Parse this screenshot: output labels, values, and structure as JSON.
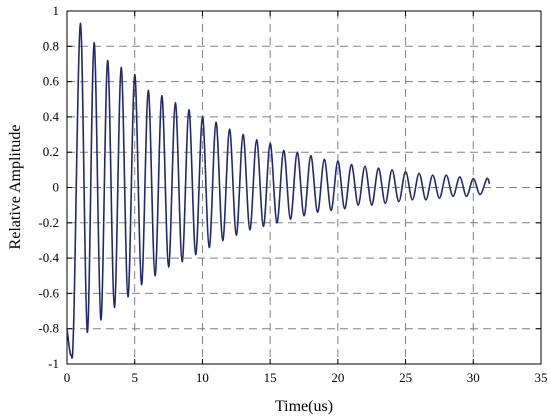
{
  "chart_data": {
    "type": "line",
    "title": "",
    "xlabel": "Time(us)",
    "ylabel": "Relative Amplitude",
    "xlim": [
      0,
      35
    ],
    "ylim": [
      -1,
      1
    ],
    "x_ticks": [
      0,
      5,
      10,
      15,
      20,
      25,
      30,
      35
    ],
    "y_ticks": [
      -1,
      -0.8,
      -0.6,
      -0.4,
      -0.2,
      0,
      0.2,
      0.4,
      0.6,
      0.8,
      1
    ],
    "x_tick_labels": [
      "0",
      "5",
      "10",
      "15",
      "20",
      "25",
      "30",
      "35"
    ],
    "y_tick_labels": [
      "-1",
      "-0.8",
      "-0.6",
      "-0.4",
      "-0.2",
      "0",
      "0.2",
      "0.4",
      "0.6",
      "0.8",
      "1"
    ],
    "grid": true,
    "series": [
      {
        "color": "#1f2a6e",
        "x": [
          0,
          0.3,
          0.5,
          1.0,
          1.5,
          2.0,
          2.5,
          3.0,
          3.5,
          4.0,
          4.5,
          5.0,
          5.5,
          6.0,
          6.5,
          7.0,
          7.5,
          8.0,
          8.5,
          9.0,
          9.5,
          10.0,
          10.5,
          11.0,
          11.5,
          12.0,
          12.5,
          13.0,
          13.5,
          14.0,
          14.5,
          15.0,
          15.5,
          16.0,
          16.5,
          17.0,
          17.5,
          18.0,
          18.5,
          19.0,
          19.5,
          20.0,
          20.5,
          21.0,
          21.5,
          22.0,
          22.5,
          23.0,
          23.5,
          24.0,
          24.5,
          25.0,
          25.5,
          26.0,
          26.5,
          27.0,
          27.5,
          28.0,
          28.5,
          29.0,
          29.5,
          30.0,
          30.5,
          31.0,
          31.2
        ],
        "y": [
          -0.8,
          -0.95,
          -0.75,
          0.93,
          -0.82,
          0.82,
          -0.75,
          0.72,
          -0.68,
          0.68,
          -0.62,
          0.64,
          -0.55,
          0.55,
          -0.5,
          0.52,
          -0.45,
          0.48,
          -0.42,
          0.44,
          -0.38,
          0.4,
          -0.34,
          0.37,
          -0.3,
          0.33,
          -0.27,
          0.3,
          -0.24,
          0.27,
          -0.22,
          0.25,
          -0.2,
          0.21,
          -0.18,
          0.2,
          -0.16,
          0.18,
          -0.14,
          0.16,
          -0.13,
          0.15,
          -0.12,
          0.13,
          -0.1,
          0.12,
          -0.1,
          0.11,
          -0.09,
          0.1,
          -0.08,
          0.09,
          -0.07,
          0.08,
          -0.07,
          0.07,
          -0.06,
          0.07,
          -0.05,
          0.06,
          -0.05,
          0.05,
          -0.04,
          0.05,
          0.02
        ]
      }
    ]
  }
}
